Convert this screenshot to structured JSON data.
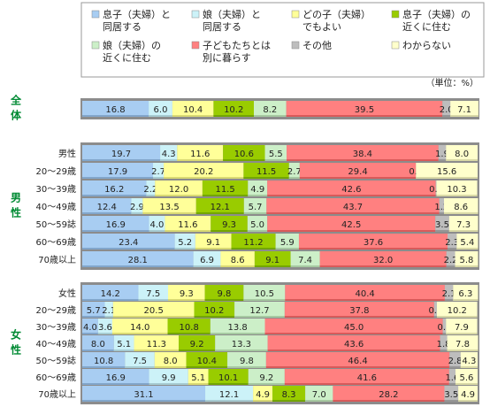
{
  "unit_note": "（単位：%）",
  "chart_data": {
    "type": "bar",
    "orientation": "horizontal",
    "stacked": true,
    "percent": true,
    "xlim": [
      0,
      100
    ],
    "legend_position": "top",
    "series": [
      {
        "name": "息子（夫婦）と同居する",
        "lines": [
          "息子（夫婦）と",
          "同居する"
        ],
        "color": "#a8cdf2"
      },
      {
        "name": "娘（夫婦）と同居する",
        "lines": [
          "娘（夫婦）と",
          "同居する"
        ],
        "color": "#ccf2f8"
      },
      {
        "name": "どの子（夫婦）でもよい",
        "lines": [
          "どの子（夫婦）",
          "でもよい"
        ],
        "color": "#ffff99"
      },
      {
        "name": "息子（夫婦）の近くに住む",
        "lines": [
          "息子（夫婦）の",
          "近くに住む"
        ],
        "color": "#99cc00"
      },
      {
        "name": "娘（夫婦）の近くに住む",
        "lines": [
          "娘（夫婦）の",
          "近くに住む"
        ],
        "color": "#ccefc8"
      },
      {
        "name": "子どもたちとは別に暮らす",
        "lines": [
          "子どもたちとは",
          "別に暮らす"
        ],
        "color": "#ff8080"
      },
      {
        "name": "その他",
        "lines": [
          "その他"
        ],
        "color": "#bdbdbd"
      },
      {
        "name": "わからない",
        "lines": [
          "わからない"
        ],
        "color": "#ffffcc"
      }
    ],
    "groups": [
      {
        "label": [
          "全",
          "体"
        ],
        "rows": [
          {
            "label": "",
            "values": [
              16.8,
              6.0,
              10.4,
              10.2,
              8.2,
              39.5,
              2.0,
              7.1
            ]
          }
        ]
      },
      {
        "label": [
          "男",
          "性"
        ],
        "rows": [
          {
            "label": "男性",
            "values": [
              19.7,
              4.3,
              11.6,
              10.6,
              5.5,
              38.4,
              1.9,
              8.0
            ]
          },
          {
            "label": "20〜29歳",
            "values": [
              17.9,
              2.7,
              20.2,
              11.5,
              2.7,
              29.4,
              0.0,
              15.6
            ]
          },
          {
            "label": "30〜39歳",
            "values": [
              16.2,
              2.2,
              12.0,
              11.5,
              4.9,
              42.6,
              0.2,
              10.3
            ]
          },
          {
            "label": "40〜49歳",
            "values": [
              12.4,
              2.9,
              13.5,
              12.1,
              5.7,
              43.7,
              1.2,
              8.6
            ]
          },
          {
            "label": "50〜59誌",
            "values": [
              16.9,
              4.0,
              11.6,
              9.3,
              5.0,
              42.5,
              3.5,
              7.3
            ]
          },
          {
            "label": "60〜69歳",
            "values": [
              23.4,
              5.2,
              9.1,
              11.2,
              5.9,
              37.6,
              2.3,
              5.4
            ]
          },
          {
            "label": "70歳以上",
            "values": [
              28.1,
              6.9,
              8.6,
              9.1,
              7.4,
              32.0,
              2.2,
              5.8
            ]
          }
        ]
      },
      {
        "label": [
          "女",
          "性"
        ],
        "rows": [
          {
            "label": "女性",
            "values": [
              14.2,
              7.5,
              9.3,
              9.8,
              10.5,
              40.4,
              2.1,
              6.3
            ]
          },
          {
            "label": "20〜29歳",
            "values": [
              5.7,
              2.1,
              20.5,
              10.2,
              12.7,
              37.8,
              0.7,
              10.2
            ]
          },
          {
            "label": "30〜39歳",
            "values": [
              4.0,
              3.6,
              14.0,
              10.8,
              13.8,
              45.0,
              0.8,
              7.9
            ]
          },
          {
            "label": "40〜49歳",
            "values": [
              8.0,
              5.1,
              11.3,
              9.2,
              13.3,
              43.6,
              1.8,
              7.8
            ]
          },
          {
            "label": "50〜59誌",
            "values": [
              10.8,
              7.5,
              8.0,
              10.4,
              9.8,
              46.4,
              2.8,
              4.3
            ]
          },
          {
            "label": "60〜69歳",
            "values": [
              16.9,
              9.9,
              5.1,
              10.1,
              9.2,
              41.6,
              1.6,
              5.6
            ]
          },
          {
            "label": "70歳以上",
            "values": [
              31.1,
              12.1,
              4.9,
              8.3,
              7.0,
              28.2,
              3.5,
              4.9
            ]
          }
        ]
      }
    ]
  }
}
